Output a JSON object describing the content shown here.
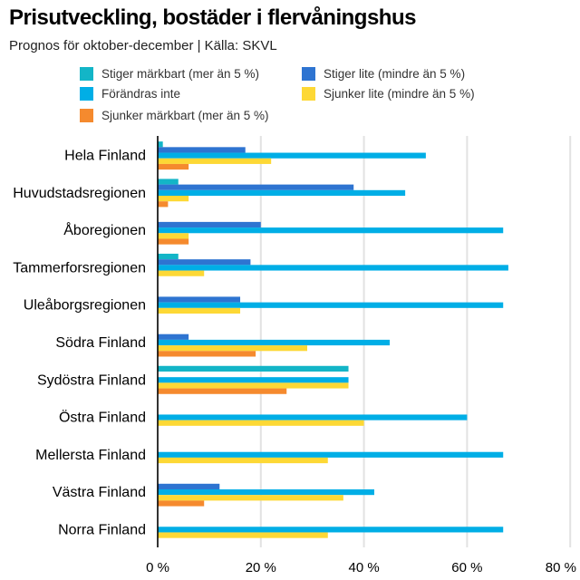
{
  "chart_data": {
    "type": "bar",
    "orientation": "horizontal",
    "title": "Prisutveckling, bostäder i flervåningshus",
    "subtitle": "Prognos för oktober-december | Källa: SKVL",
    "xlim": [
      0,
      80
    ],
    "xticks": [
      0,
      20,
      40,
      60,
      80
    ],
    "tick_suffix": " %",
    "grid": "vertical",
    "legend_position": "top",
    "categories": [
      "Hela Finland",
      "Huvudstadsregionen",
      "Åboregionen",
      "Tammerforsregionen",
      "Uleåborgsregionen",
      "Södra Finland",
      "Sydöstra Finland",
      "Östra Finland",
      "Mellersta Finland",
      "Västra Finland",
      "Norra Finland"
    ],
    "series": [
      {
        "name": "Stiger märkbart (mer än 5 %)",
        "color": "#13b5c7",
        "values": [
          1,
          4,
          0,
          4,
          0,
          0,
          37,
          0,
          0,
          0,
          0
        ]
      },
      {
        "name": "Stiger lite (mindre än 5 %)",
        "color": "#2e74d1",
        "values": [
          17,
          38,
          20,
          18,
          16,
          6,
          0,
          0,
          0,
          12,
          0
        ]
      },
      {
        "name": "Förändras inte",
        "color": "#00aee6",
        "values": [
          52,
          48,
          67,
          68,
          67,
          45,
          37,
          60,
          67,
          42,
          67
        ]
      },
      {
        "name": "Sjunker lite (mindre än 5 %)",
        "color": "#fdd835",
        "values": [
          22,
          6,
          6,
          9,
          16,
          29,
          37,
          40,
          33,
          36,
          33
        ]
      },
      {
        "name": "Sjunker märkbart (mer än 5 %)",
        "color": "#f58a2e",
        "values": [
          6,
          2,
          6,
          0,
          0,
          19,
          25,
          0,
          0,
          9,
          0
        ]
      }
    ],
    "legend_order": [
      0,
      1,
      2,
      3,
      4
    ]
  }
}
